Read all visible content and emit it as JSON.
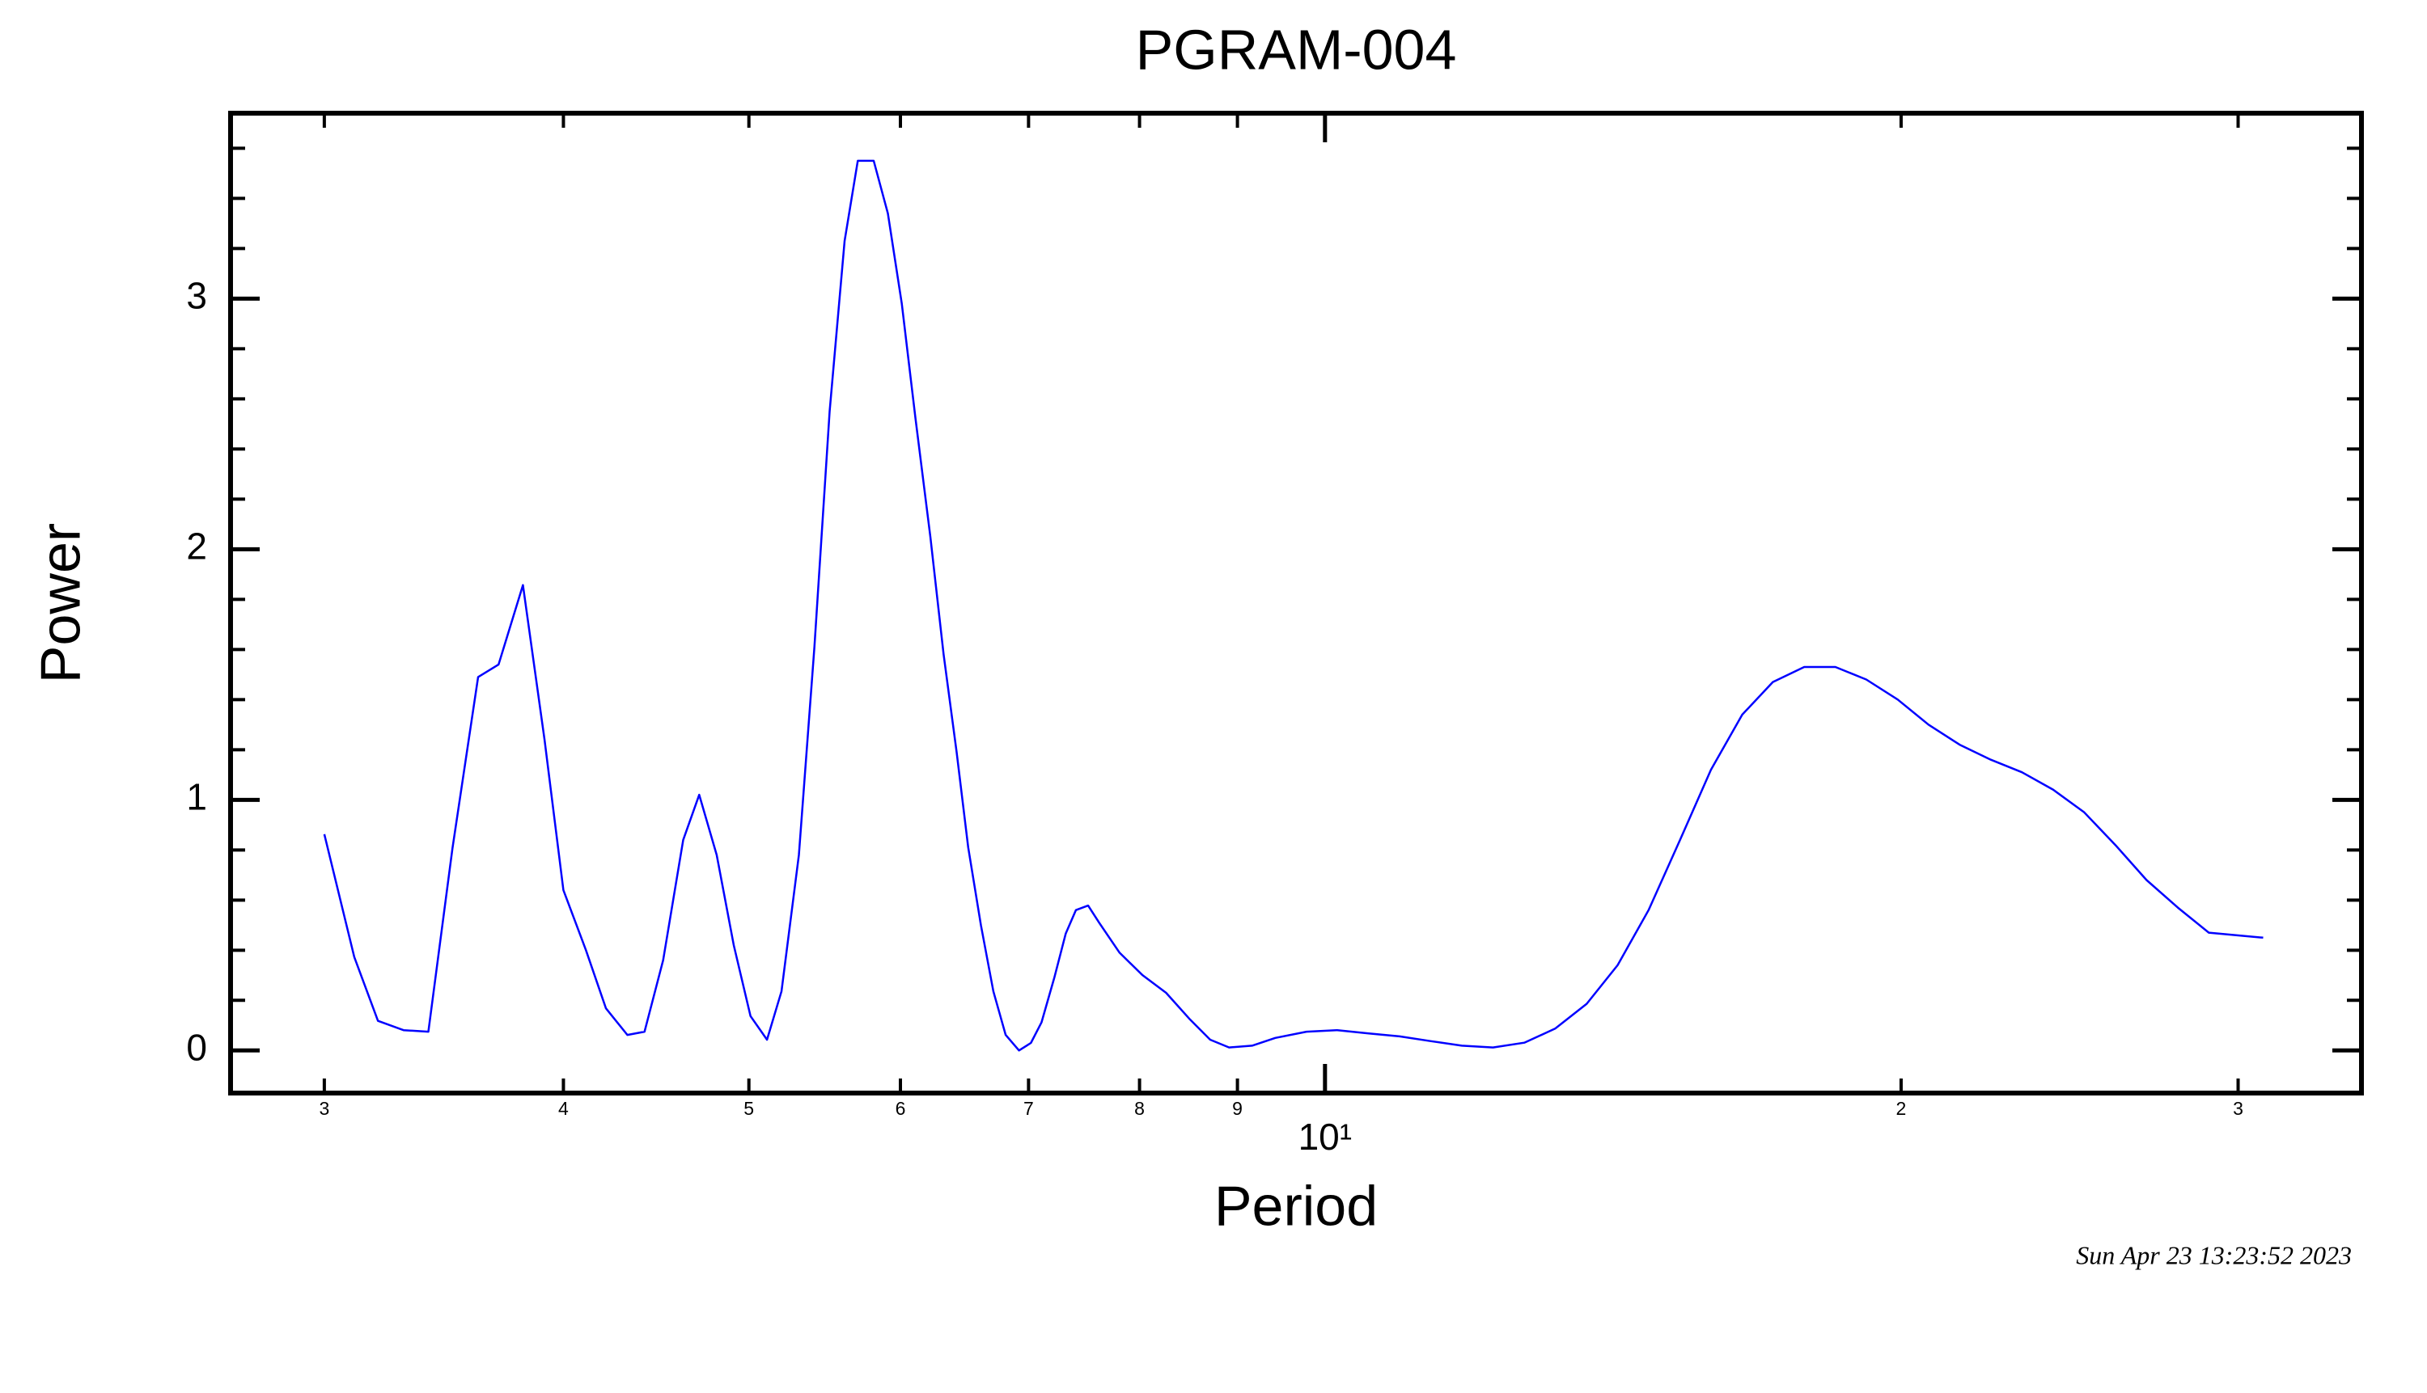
{
  "chart_data": {
    "type": "line",
    "title": "PGRAM-004",
    "x_label": "Period",
    "y_label": "Power",
    "timestamp": "Sun Apr 23 13:23:52 2023",
    "xscale": "log",
    "grid": false,
    "xlim": [
      2.68,
      34.8
    ],
    "ylim": [
      -0.17,
      3.74
    ],
    "xticks": [
      3,
      4,
      5,
      6,
      7,
      8,
      9,
      {
        "value": 10,
        "label": "10¹"
      },
      {
        "value": 20,
        "label": "2"
      },
      {
        "value": 30,
        "label": "3"
      }
    ],
    "yticks": [
      0,
      1,
      2,
      3
    ],
    "series": [
      {
        "name": "Power",
        "color": "#0000ff",
        "x": [
          3.0,
          3.11,
          3.2,
          3.3,
          3.4,
          3.5,
          3.61,
          3.7,
          3.81,
          3.91,
          4.0,
          4.11,
          4.21,
          4.32,
          4.41,
          4.51,
          4.62,
          4.71,
          4.81,
          4.91,
          5.01,
          5.11,
          5.2,
          5.31,
          5.41,
          5.51,
          5.61,
          5.7,
          5.81,
          5.91,
          6.01,
          6.11,
          6.22,
          6.32,
          6.42,
          6.51,
          6.61,
          6.71,
          6.81,
          6.92,
          7.02,
          7.11,
          7.22,
          7.32,
          7.41,
          7.52,
          7.62,
          7.81,
          8.03,
          8.26,
          8.5,
          8.71,
          8.91,
          9.16,
          9.42,
          9.78,
          10.15,
          10.54,
          10.94,
          11.36,
          11.79,
          12.24,
          12.71,
          13.19,
          13.7,
          14.22,
          14.76,
          15.33,
          15.91,
          16.52,
          17.14,
          17.8,
          18.48,
          19.18,
          19.92,
          20.67,
          21.46,
          22.28,
          23.13,
          24.02,
          24.93,
          25.88,
          26.87,
          27.9,
          28.96,
          30.92
        ],
        "values": [
          0.863,
          0.373,
          0.118,
          0.081,
          0.075,
          0.807,
          1.49,
          1.54,
          1.857,
          1.24,
          0.64,
          0.4,
          0.168,
          0.062,
          0.075,
          0.36,
          0.84,
          1.02,
          0.78,
          0.42,
          0.137,
          0.043,
          0.236,
          0.78,
          1.61,
          2.55,
          3.23,
          3.55,
          3.55,
          3.34,
          2.98,
          2.52,
          2.05,
          1.58,
          1.19,
          0.81,
          0.5,
          0.236,
          0.062,
          0.0,
          0.03,
          0.112,
          0.29,
          0.466,
          0.56,
          0.578,
          0.51,
          0.39,
          0.3,
          0.23,
          0.124,
          0.043,
          0.012,
          0.019,
          0.05,
          0.075,
          0.081,
          0.068,
          0.056,
          0.037,
          0.019,
          0.012,
          0.031,
          0.087,
          0.186,
          0.34,
          0.56,
          0.84,
          1.12,
          1.34,
          1.47,
          1.53,
          1.53,
          1.48,
          1.4,
          1.3,
          1.22,
          1.16,
          1.11,
          1.04,
          0.95,
          0.82,
          0.68,
          0.57,
          0.47,
          0.45
        ]
      }
    ]
  }
}
